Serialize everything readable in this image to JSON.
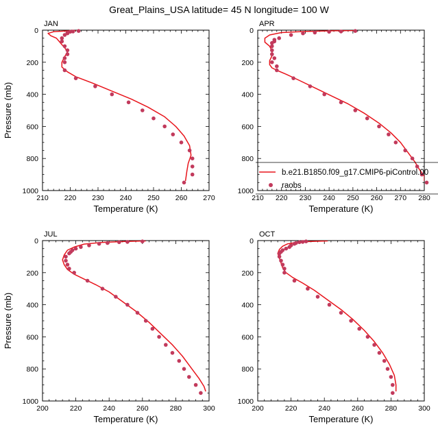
{
  "title": "Great_Plains_USA  latitude= 45 N longitude= 100 W",
  "legend": {
    "model_label": "b.e21.B1850.f09_g17.CMIP6-piControl.00",
    "obs_label": "raobs"
  },
  "colors": {
    "model": "#e8141b",
    "obs": "#c23a5c"
  },
  "chart_data": [
    {
      "type": "line",
      "panel": "JAN",
      "xlabel": "Temperature (K)",
      "ylabel": "Pressure (mb)",
      "xlim": [
        210,
        270
      ],
      "ylim": [
        1000,
        0
      ],
      "xticks": [
        210,
        220,
        230,
        240,
        250,
        260,
        270
      ],
      "yticks": [
        0,
        200,
        400,
        600,
        800,
        1000
      ],
      "model": {
        "name": "b.e21.B1850.f09_g17.CMIP6-piControl.00",
        "points": [
          [
            222,
            2
          ],
          [
            218,
            5
          ],
          [
            214,
            10
          ],
          [
            212,
            20
          ],
          [
            213,
            35
          ],
          [
            215,
            50
          ],
          [
            216,
            70
          ],
          [
            217,
            90
          ],
          [
            218,
            110
          ],
          [
            219,
            135
          ],
          [
            218,
            165
          ],
          [
            217,
            200
          ],
          [
            217,
            230
          ],
          [
            219,
            260
          ],
          [
            222,
            290
          ],
          [
            228,
            330
          ],
          [
            235,
            380
          ],
          [
            242,
            430
          ],
          [
            248,
            480
          ],
          [
            254,
            540
          ],
          [
            258,
            600
          ],
          [
            261,
            660
          ],
          [
            263,
            720
          ],
          [
            263.5,
            780
          ],
          [
            262.5,
            830
          ],
          [
            262,
            880
          ],
          [
            261.5,
            940
          ]
        ]
      },
      "raobs": {
        "name": "raobs",
        "points": [
          [
            223,
            5
          ],
          [
            221,
            8
          ],
          [
            220,
            10
          ],
          [
            219,
            15
          ],
          [
            219,
            20
          ],
          [
            218,
            30
          ],
          [
            217,
            50
          ],
          [
            217,
            70
          ],
          [
            218,
            100
          ],
          [
            219,
            125
          ],
          [
            219,
            150
          ],
          [
            218,
            175
          ],
          [
            218,
            200
          ],
          [
            218,
            250
          ],
          [
            222,
            300
          ],
          [
            229,
            350
          ],
          [
            235,
            400
          ],
          [
            241,
            450
          ],
          [
            246,
            500
          ],
          [
            250,
            550
          ],
          [
            254,
            600
          ],
          [
            257,
            650
          ],
          [
            260,
            700
          ],
          [
            263,
            750
          ],
          [
            264,
            800
          ],
          [
            264,
            850
          ],
          [
            264,
            900
          ],
          [
            261,
            950
          ]
        ]
      }
    },
    {
      "type": "line",
      "panel": "APR",
      "xlabel": "Temperature (K)",
      "ylabel": "",
      "xlim": [
        210,
        280
      ],
      "ylim": [
        1000,
        0
      ],
      "xticks": [
        210,
        220,
        230,
        240,
        250,
        260,
        270,
        280
      ],
      "yticks": [
        0,
        200,
        400,
        600,
        800,
        1000
      ],
      "model": {
        "name": "b.e21.B1850.f09_g17.CMIP6-piControl.00",
        "points": [
          [
            251,
            2
          ],
          [
            242,
            4
          ],
          [
            230,
            8
          ],
          [
            220,
            15
          ],
          [
            215,
            30
          ],
          [
            213,
            50
          ],
          [
            213,
            75
          ],
          [
            215,
            100
          ],
          [
            216,
            130
          ],
          [
            216,
            160
          ],
          [
            215,
            190
          ],
          [
            215,
            215
          ],
          [
            216,
            235
          ],
          [
            218,
            250
          ],
          [
            222,
            275
          ],
          [
            227,
            310
          ],
          [
            234,
            360
          ],
          [
            241,
            410
          ],
          [
            248,
            460
          ],
          [
            255,
            520
          ],
          [
            261,
            580
          ],
          [
            266,
            640
          ],
          [
            270,
            700
          ],
          [
            273,
            760
          ],
          [
            276,
            820
          ],
          [
            278,
            870
          ],
          [
            280,
            910
          ],
          [
            280,
            940
          ]
        ]
      },
      "raobs": {
        "name": "raobs",
        "points": [
          [
            251,
            5
          ],
          [
            245,
            8
          ],
          [
            240,
            10
          ],
          [
            234,
            15
          ],
          [
            229,
            20
          ],
          [
            224,
            30
          ],
          [
            219,
            50
          ],
          [
            217,
            60
          ],
          [
            217,
            70
          ],
          [
            216,
            80
          ],
          [
            216,
            100
          ],
          [
            216,
            125
          ],
          [
            216,
            150
          ],
          [
            217,
            175
          ],
          [
            216,
            200
          ],
          [
            218,
            225
          ],
          [
            218,
            250
          ],
          [
            225,
            300
          ],
          [
            232,
            350
          ],
          [
            238,
            400
          ],
          [
            245,
            450
          ],
          [
            251,
            500
          ],
          [
            256,
            550
          ],
          [
            261,
            600
          ],
          [
            265,
            650
          ],
          [
            268,
            700
          ],
          [
            272,
            750
          ],
          [
            275,
            800
          ],
          [
            277,
            850
          ],
          [
            279,
            900
          ],
          [
            281,
            950
          ]
        ]
      }
    },
    {
      "type": "line",
      "panel": "JUL",
      "xlabel": "Temperature (K)",
      "ylabel": "Pressure (mb)",
      "xlim": [
        200,
        300
      ],
      "ylim": [
        1000,
        0
      ],
      "xticks": [
        200,
        220,
        240,
        260,
        280,
        300
      ],
      "yticks": [
        0,
        200,
        400,
        600,
        800,
        1000
      ],
      "model": {
        "name": "b.e21.B1850.f09_g17.CMIP6-piControl.00",
        "points": [
          [
            262,
            2
          ],
          [
            250,
            5
          ],
          [
            235,
            12
          ],
          [
            225,
            22
          ],
          [
            219,
            40
          ],
          [
            215,
            60
          ],
          [
            213,
            90
          ],
          [
            212,
            120
          ],
          [
            213,
            150
          ],
          [
            215,
            180
          ],
          [
            219,
            210
          ],
          [
            225,
            240
          ],
          [
            232,
            275
          ],
          [
            240,
            320
          ],
          [
            248,
            380
          ],
          [
            256,
            440
          ],
          [
            264,
            510
          ],
          [
            271,
            580
          ],
          [
            278,
            650
          ],
          [
            284,
            720
          ],
          [
            289,
            790
          ],
          [
            294,
            860
          ],
          [
            297,
            910
          ],
          [
            298,
            940
          ]
        ]
      },
      "raobs": {
        "name": "raobs",
        "points": [
          [
            260,
            5
          ],
          [
            251,
            8
          ],
          [
            246,
            10
          ],
          [
            239,
            15
          ],
          [
            234,
            20
          ],
          [
            228,
            30
          ],
          [
            223,
            40
          ],
          [
            220,
            50
          ],
          [
            218,
            60
          ],
          [
            217,
            70
          ],
          [
            216,
            80
          ],
          [
            214,
            100
          ],
          [
            214,
            125
          ],
          [
            215,
            150
          ],
          [
            216,
            175
          ],
          [
            219,
            200
          ],
          [
            227,
            250
          ],
          [
            236,
            300
          ],
          [
            244,
            350
          ],
          [
            251,
            400
          ],
          [
            257,
            450
          ],
          [
            262,
            500
          ],
          [
            266,
            550
          ],
          [
            270,
            600
          ],
          [
            274,
            650
          ],
          [
            278,
            700
          ],
          [
            282,
            750
          ],
          [
            285,
            800
          ],
          [
            288,
            850
          ],
          [
            292,
            900
          ],
          [
            295,
            950
          ]
        ]
      }
    },
    {
      "type": "line",
      "panel": "OCT",
      "xlabel": "Temperature (K)",
      "ylabel": "",
      "xlim": [
        200,
        300
      ],
      "ylim": [
        1000,
        0
      ],
      "xticks": [
        200,
        220,
        240,
        260,
        280,
        300
      ],
      "yticks": [
        0,
        200,
        400,
        600,
        800,
        1000
      ],
      "model": {
        "name": "b.e21.B1850.f09_g17.CMIP6-piControl.00",
        "points": [
          [
            242,
            2
          ],
          [
            232,
            5
          ],
          [
            224,
            10
          ],
          [
            218,
            20
          ],
          [
            215,
            35
          ],
          [
            213,
            55
          ],
          [
            212,
            80
          ],
          [
            213,
            110
          ],
          [
            214,
            140
          ],
          [
            215,
            170
          ],
          [
            217,
            200
          ],
          [
            221,
            230
          ],
          [
            227,
            265
          ],
          [
            234,
            310
          ],
          [
            242,
            370
          ],
          [
            250,
            430
          ],
          [
            257,
            490
          ],
          [
            264,
            560
          ],
          [
            270,
            630
          ],
          [
            275,
            700
          ],
          [
            279,
            770
          ],
          [
            282,
            840
          ],
          [
            283,
            900
          ],
          [
            283,
            940
          ]
        ]
      },
      "raobs": {
        "name": "raobs",
        "points": [
          [
            229,
            5
          ],
          [
            227,
            8
          ],
          [
            225,
            10
          ],
          [
            223,
            15
          ],
          [
            222,
            20
          ],
          [
            220,
            30
          ],
          [
            219,
            40
          ],
          [
            217,
            50
          ],
          [
            215,
            60
          ],
          [
            214,
            70
          ],
          [
            213,
            80
          ],
          [
            213,
            100
          ],
          [
            214,
            125
          ],
          [
            215,
            150
          ],
          [
            216,
            175
          ],
          [
            216,
            200
          ],
          [
            222,
            250
          ],
          [
            230,
            300
          ],
          [
            236,
            350
          ],
          [
            243,
            400
          ],
          [
            250,
            450
          ],
          [
            256,
            500
          ],
          [
            261,
            550
          ],
          [
            266,
            600
          ],
          [
            270,
            650
          ],
          [
            273,
            700
          ],
          [
            276,
            750
          ],
          [
            278,
            800
          ],
          [
            280,
            850
          ],
          [
            281,
            900
          ],
          [
            281,
            950
          ]
        ]
      }
    }
  ]
}
